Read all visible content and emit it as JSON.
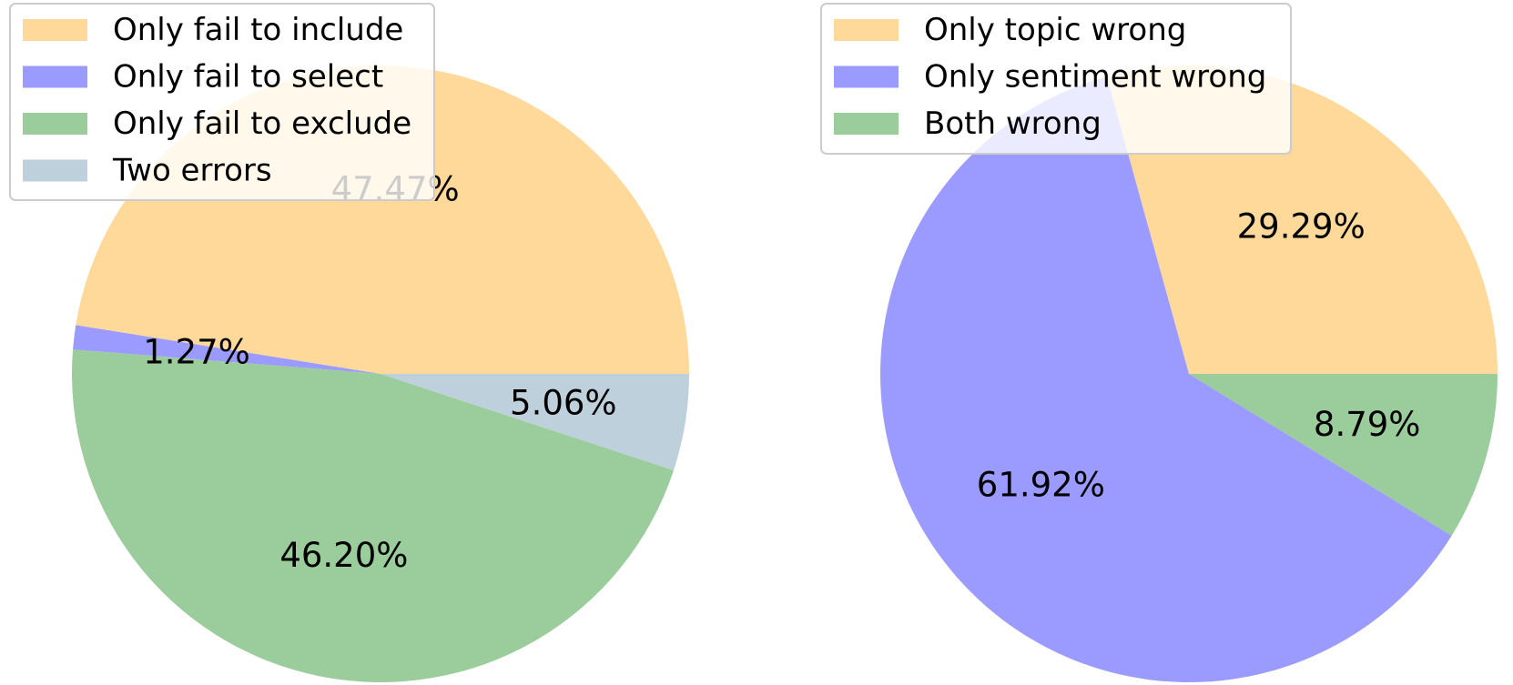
{
  "colors": {
    "orange": "#fed999",
    "blue": "#9b9bff",
    "green": "#9bcc9b",
    "gray": "#bfd0dd",
    "legend_fill": "#ffffff",
    "legend_border": "#cccccc"
  },
  "chart_data": [
    {
      "type": "pie",
      "start_angle_deg": 0,
      "direction": "counterclockwise",
      "legend_placement": "upper-left",
      "slices": [
        {
          "label": "Only fail to include",
          "value": 47.47,
          "pct_label": "47.47%",
          "color": "#fed999"
        },
        {
          "label": "Only fail to select",
          "value": 1.27,
          "pct_label": "1.27%",
          "color": "#9b9bff"
        },
        {
          "label": "Only fail to exclude",
          "value": 46.2,
          "pct_label": "46.20%",
          "color": "#9bcc9b"
        },
        {
          "label": "Two errors",
          "value": 5.06,
          "pct_label": "5.06%",
          "color": "#bfd0dd"
        }
      ]
    },
    {
      "type": "pie",
      "start_angle_deg": 0,
      "direction": "counterclockwise",
      "legend_placement": "upper-left",
      "slices": [
        {
          "label": "Only topic wrong",
          "value": 29.29,
          "pct_label": "29.29%",
          "color": "#fed999"
        },
        {
          "label": "Only sentiment wrong",
          "value": 61.92,
          "pct_label": "61.92%",
          "color": "#9b9bff"
        },
        {
          "label": "Both wrong",
          "value": 8.79,
          "pct_label": "8.79%",
          "color": "#9bcc9b"
        }
      ]
    }
  ]
}
